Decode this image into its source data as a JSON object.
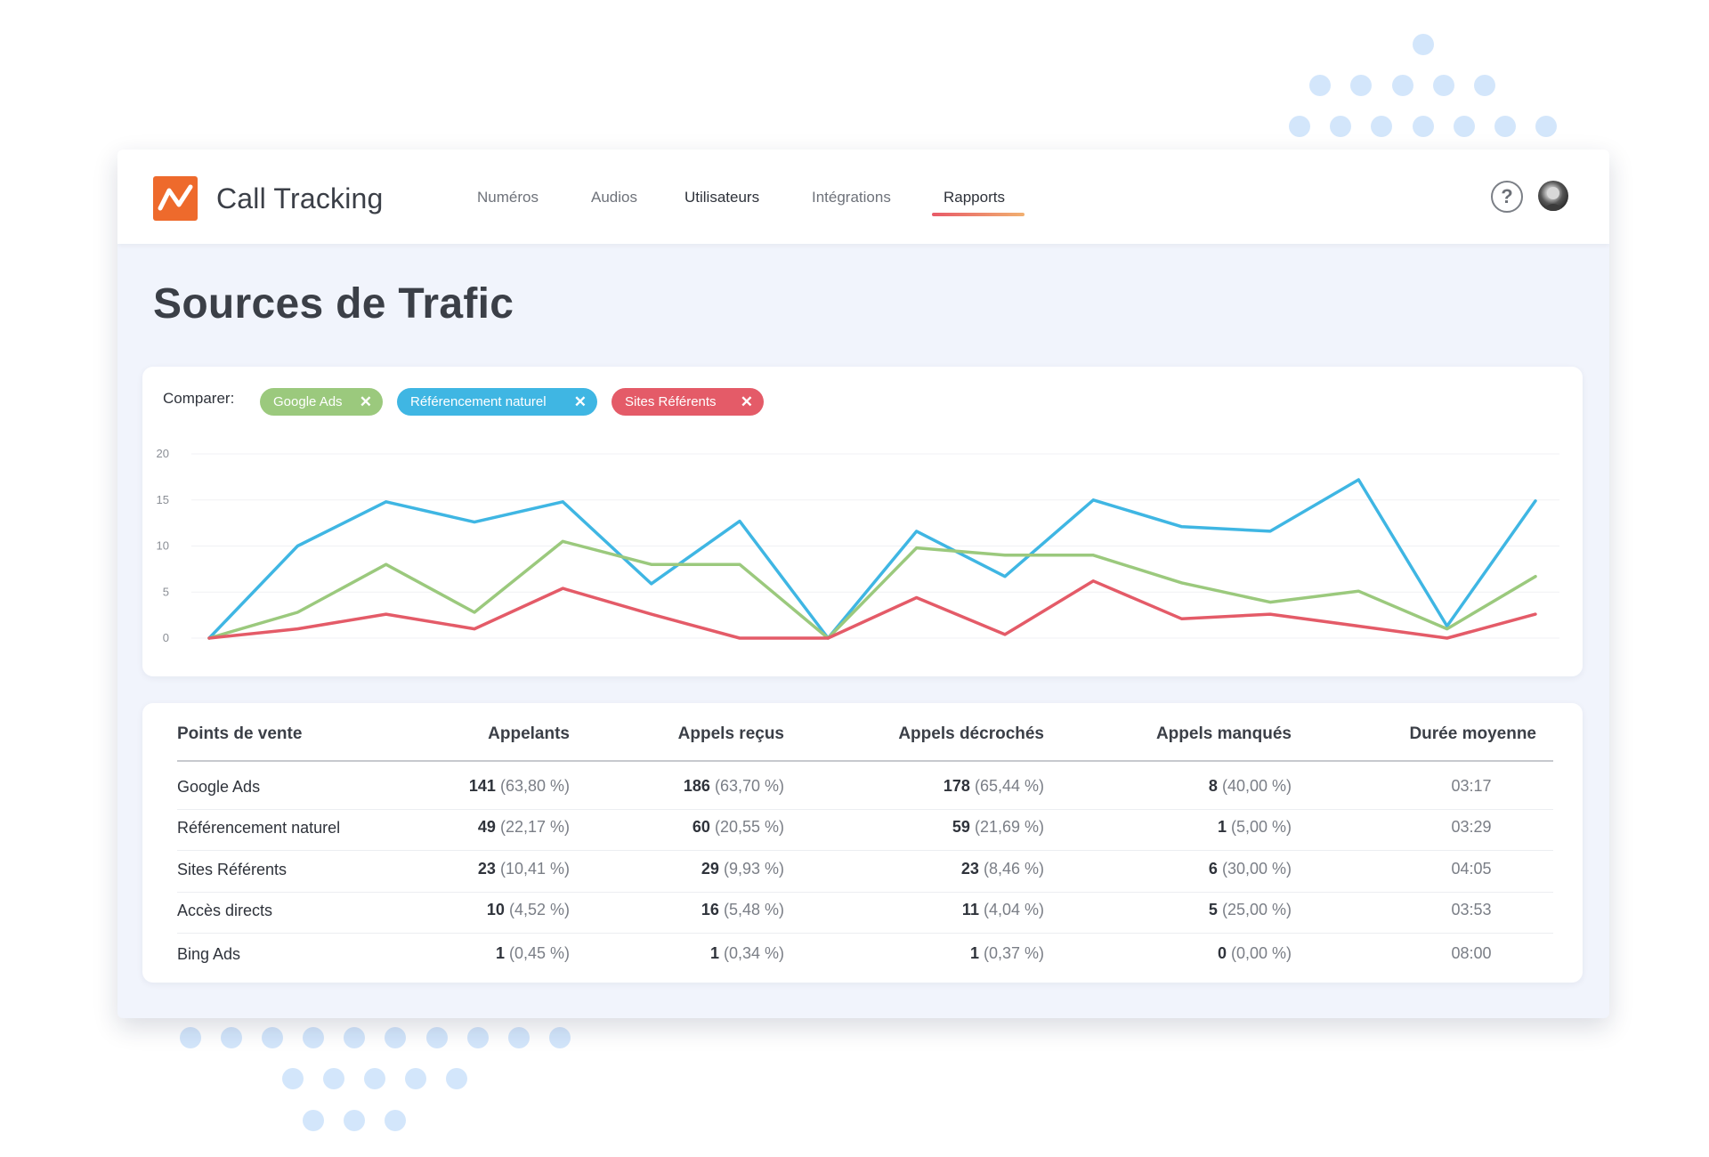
{
  "app": {
    "title": "Call Tracking",
    "brand_color": "#ee6a2c"
  },
  "nav": {
    "items": [
      {
        "label": "Numéros"
      },
      {
        "label": "Audios"
      },
      {
        "label": "Utilisateurs"
      },
      {
        "label": "Intégrations"
      },
      {
        "label": "Rapports",
        "active": true
      }
    ],
    "help_label": "?"
  },
  "page": {
    "title": "Sources de Trafic"
  },
  "compare": {
    "label": "Comparer:",
    "chips": [
      {
        "label": "Google Ads",
        "color": "#9bc97d",
        "close": "✕"
      },
      {
        "label": "Référencement naturel",
        "color": "#3fb6e3",
        "close": "✕"
      },
      {
        "label": "Sites Référents",
        "color": "#e45b68",
        "close": "✕"
      }
    ]
  },
  "chart_data": {
    "type": "line",
    "title": "",
    "xlabel": "",
    "ylabel": "",
    "ylim": [
      0,
      20
    ],
    "yticks": [
      "20",
      "15",
      "10",
      "5",
      "0"
    ],
    "grid": true,
    "x": [
      1,
      2,
      3,
      4,
      5,
      6,
      7,
      8,
      9,
      10,
      11,
      12,
      13,
      14,
      15,
      16
    ],
    "series": [
      {
        "name": "Référencement naturel",
        "color": "#3fb6e3",
        "values": [
          0,
          10,
          14.8,
          12.6,
          14.8,
          5.9,
          12.7,
          0,
          11.6,
          6.7,
          15,
          12.1,
          11.6,
          17.2,
          1.3,
          14.9
        ]
      },
      {
        "name": "Google Ads",
        "color": "#9bc97d",
        "values": [
          0,
          2.8,
          8,
          2.8,
          10.5,
          8,
          8,
          0,
          9.8,
          9,
          9,
          6,
          3.9,
          5.1,
          1,
          6.7
        ]
      },
      {
        "name": "Sites Référents",
        "color": "#e45b68",
        "values": [
          0,
          1,
          2.6,
          1,
          5.4,
          2.6,
          0,
          0,
          4.4,
          0.4,
          6.2,
          2.1,
          2.6,
          1.3,
          0,
          2.6
        ]
      }
    ]
  },
  "table": {
    "headers": [
      "Points de vente",
      "Appelants",
      "Appels reçus",
      "Appels décrochés",
      "Appels manqués",
      "Durée moyenne"
    ],
    "rows": [
      {
        "name": "Google Ads",
        "appelants": {
          "v": "141",
          "p": "(63,80 %)"
        },
        "recus": {
          "v": "186",
          "p": "(63,70 %)"
        },
        "decroches": {
          "v": "178",
          "p": "(65,44 %)"
        },
        "manques": {
          "v": "8",
          "p": "(40,00 %)"
        },
        "duree": "03:17"
      },
      {
        "name": "Référencement naturel",
        "appelants": {
          "v": "49",
          "p": " (22,17 %)"
        },
        "recus": {
          "v": "60",
          "p": "(20,55 %)"
        },
        "decroches": {
          "v": "59",
          "p": "(21,69 %)"
        },
        "manques": {
          "v": "1",
          "p": "(5,00 %)"
        },
        "duree": "03:29"
      },
      {
        "name": "Sites Référents",
        "appelants": {
          "v": "23",
          "p": "(10,41 %)"
        },
        "recus": {
          "v": "29",
          "p": "(9,93 %)"
        },
        "decroches": {
          "v": "23",
          "p": "(8,46 %)"
        },
        "manques": {
          "v": "6",
          "p": "(30,00 %)"
        },
        "duree": "04:05"
      },
      {
        "name": "Accès directs",
        "appelants": {
          "v": "10",
          "p": "(4,52 %)"
        },
        "recus": {
          "v": "16",
          "p": "(5,48 %)"
        },
        "decroches": {
          "v": "11",
          "p": "(4,04 %)"
        },
        "manques": {
          "v": "5",
          "p": "(25,00 %)"
        },
        "duree": "03:53"
      },
      {
        "name": "Bing Ads",
        "appelants": {
          "v": "1",
          "p": "(0,45 %)"
        },
        "recus": {
          "v": "1",
          "p": "(0,34 %)"
        },
        "decroches": {
          "v": "1",
          "p": "(0,37 %)"
        },
        "manques": {
          "v": "0",
          "p": "(0,00 %)"
        },
        "duree": "08:00"
      }
    ]
  }
}
